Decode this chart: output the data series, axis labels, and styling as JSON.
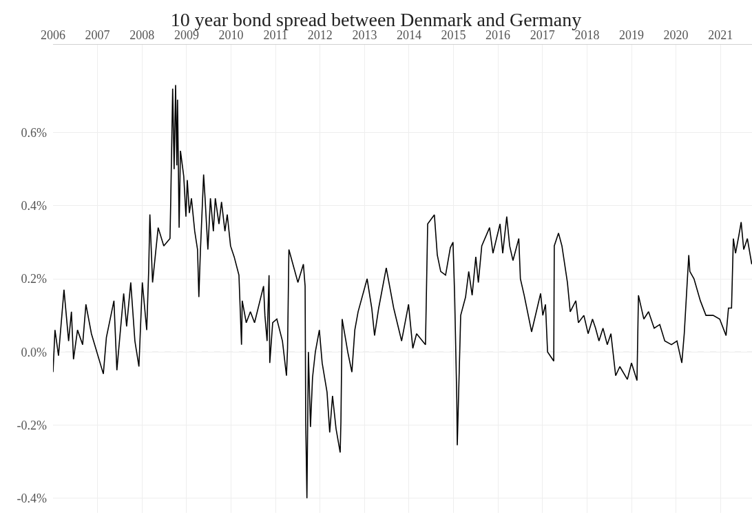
{
  "chart_data": {
    "type": "line",
    "title": "10 year bond spread between Denmark and Germany",
    "x": [
      "2006-01-01",
      "2006-01-17",
      "2006-02-15",
      "2006-04-01",
      "2006-05-09",
      "2006-06-01",
      "2006-06-18",
      "2006-07-21",
      "2006-09-01",
      "2006-09-28",
      "2006-11-12",
      "2007-02-18",
      "2007-03-15",
      "2007-05-16",
      "2007-06-09",
      "2007-08-04",
      "2007-08-28",
      "2007-10-01",
      "2007-11-04",
      "2007-12-07",
      "2008-01-04",
      "2008-02-09",
      "2008-02-25",
      "2008-03-06",
      "2008-03-28",
      "2008-05-13",
      "2008-06-28",
      "2008-08-18",
      "2008-08-24",
      "2008-09-09",
      "2008-09-21",
      "2008-10-03",
      "2008-10-13",
      "2008-10-19",
      "2008-11-01",
      "2008-11-12",
      "2008-12-09",
      "2008-12-27",
      "2009-01-07",
      "2009-01-24",
      "2009-02-10",
      "2009-03-09",
      "2009-04-01",
      "2009-04-12",
      "2009-04-24",
      "2009-05-21",
      "2009-06-02",
      "2009-06-25",
      "2009-07-16",
      "2009-08-09",
      "2009-08-25",
      "2009-09-24",
      "2009-10-15",
      "2009-11-12",
      "2009-12-01",
      "2009-12-28",
      "2010-01-27",
      "2010-03-07",
      "2010-03-28",
      "2010-04-03",
      "2010-05-06",
      "2010-06-09",
      "2010-07-13",
      "2010-09-25",
      "2010-10-06",
      "2010-10-24",
      "2010-11-09",
      "2010-11-15",
      "2010-12-09",
      "2011-01-12",
      "2011-02-27",
      "2011-04-01",
      "2011-04-10",
      "2011-04-21",
      "2011-06-01",
      "2011-07-04",
      "2011-08-18",
      "2011-09-01",
      "2011-09-06",
      "2011-09-16",
      "2011-09-28",
      "2011-10-15",
      "2011-11-01",
      "2011-11-24",
      "2011-12-27",
      "2012-01-19",
      "2012-02-28",
      "2012-03-21",
      "2012-04-13",
      "2012-05-12",
      "2012-06-15",
      "2012-06-21",
      "2012-07-01",
      "2012-08-01",
      "2012-08-16",
      "2012-09-19",
      "2012-10-13",
      "2012-11-09",
      "2013-01-22",
      "2013-03-01",
      "2013-03-24",
      "2013-04-27",
      "2013-06-28",
      "2013-08-28",
      "2013-11-01",
      "2013-12-28",
      "2014-02-01",
      "2014-03-04",
      "2014-05-16",
      "2014-06-03",
      "2014-07-28",
      "2014-08-21",
      "2014-09-18",
      "2014-10-28",
      "2014-12-06",
      "2014-12-28",
      "2015-01-10",
      "2015-01-28",
      "2015-02-01",
      "2015-03-01",
      "2015-04-10",
      "2015-05-06",
      "2015-06-03",
      "2015-07-03",
      "2015-07-24",
      "2015-08-21",
      "2015-10-24",
      "2015-11-21",
      "2016-01-18",
      "2016-02-09",
      "2016-03-13",
      "2016-04-06",
      "2016-05-03",
      "2016-06-20",
      "2016-07-03",
      "2016-08-03",
      "2016-10-03",
      "2016-12-16",
      "2017-01-03",
      "2017-01-25",
      "2017-02-11",
      "2017-04-03",
      "2017-04-07",
      "2017-05-12",
      "2017-06-09",
      "2017-07-24",
      "2017-08-16",
      "2017-10-01",
      "2017-10-22",
      "2017-12-06",
      "2018-01-10",
      "2018-02-15",
      "2018-03-12",
      "2018-04-09",
      "2018-05-12",
      "2018-06-16",
      "2018-07-16",
      "2018-08-24",
      "2018-09-27",
      "2018-11-28",
      "2019-01-01",
      "2019-02-15",
      "2019-02-27",
      "2019-04-12",
      "2019-05-21",
      "2019-07-06",
      "2019-08-21",
      "2019-10-01",
      "2019-11-25",
      "2020-01-09",
      "2020-02-18",
      "2020-03-09",
      "2020-04-15",
      "2020-04-24",
      "2020-05-28",
      "2020-07-19",
      "2020-09-03",
      "2020-11-01",
      "2020-12-25",
      "2021-02-15",
      "2021-03-07",
      "2021-04-01",
      "2021-04-16",
      "2021-05-04",
      "2021-06-01",
      "2021-06-19",
      "2021-07-10",
      "2021-08-09",
      "2021-09-14"
    ],
    "series": [
      {
        "color": "#000000",
        "values": [
          -0.055,
          0.06,
          -0.01,
          0.17,
          0.03,
          0.11,
          -0.02,
          0.06,
          0.02,
          0.13,
          0.05,
          -0.06,
          0.04,
          0.14,
          -0.05,
          0.16,
          0.07,
          0.19,
          0.03,
          -0.04,
          0.19,
          0.06,
          0.22,
          0.376,
          0.19,
          0.34,
          0.29,
          0.31,
          0.41,
          0.72,
          0.5,
          0.73,
          0.51,
          0.69,
          0.34,
          0.55,
          0.48,
          0.37,
          0.47,
          0.38,
          0.42,
          0.33,
          0.28,
          0.15,
          0.27,
          0.485,
          0.42,
          0.28,
          0.42,
          0.33,
          0.42,
          0.35,
          0.41,
          0.33,
          0.376,
          0.29,
          0.26,
          0.21,
          0.02,
          0.14,
          0.08,
          0.11,
          0.08,
          0.18,
          0.1,
          0.03,
          0.21,
          -0.03,
          0.08,
          0.09,
          0.03,
          -0.065,
          0.01,
          0.28,
          0.23,
          0.19,
          0.24,
          0.18,
          -0.19,
          -0.4,
          0.0,
          -0.205,
          -0.07,
          0.0,
          0.06,
          -0.03,
          -0.11,
          -0.22,
          -0.12,
          -0.21,
          -0.275,
          -0.19,
          0.09,
          0.03,
          0.0,
          -0.055,
          0.06,
          0.11,
          0.2,
          0.12,
          0.045,
          0.12,
          0.23,
          0.12,
          0.03,
          0.13,
          0.01,
          0.05,
          0.02,
          0.35,
          0.375,
          0.265,
          0.22,
          0.21,
          0.285,
          0.3,
          0.16,
          -0.13,
          -0.255,
          0.1,
          0.15,
          0.22,
          0.155,
          0.26,
          0.19,
          0.29,
          0.34,
          0.27,
          0.35,
          0.27,
          0.37,
          0.29,
          0.25,
          0.31,
          0.2,
          0.155,
          0.055,
          0.16,
          0.1,
          0.13,
          0.0,
          -0.025,
          0.29,
          0.325,
          0.29,
          0.19,
          0.11,
          0.14,
          0.08,
          0.1,
          0.05,
          0.09,
          0.065,
          0.03,
          0.065,
          0.02,
          0.05,
          -0.065,
          -0.04,
          -0.075,
          -0.03,
          -0.078,
          0.155,
          0.09,
          0.11,
          0.065,
          0.075,
          0.03,
          0.02,
          0.03,
          -0.03,
          0.05,
          0.265,
          0.22,
          0.2,
          0.14,
          0.1,
          0.1,
          0.09,
          0.045,
          0.12,
          0.12,
          0.31,
          0.27,
          0.32,
          0.355,
          0.28,
          0.31,
          0.24
        ]
      }
    ],
    "xlim": [
      "2006-01-01",
      "2021-09-16"
    ],
    "xticks": [
      "2006",
      "2007",
      "2008",
      "2009",
      "2010",
      "2011",
      "2012",
      "2013",
      "2014",
      "2015",
      "2016",
      "2017",
      "2018",
      "2019",
      "2020",
      "2021"
    ],
    "ylim": [
      -0.44,
      0.84
    ],
    "yticks": [
      {
        "value": -0.4,
        "label": "-0.4%"
      },
      {
        "value": -0.2,
        "label": "-0.2%"
      },
      {
        "value": 0.0,
        "label": "0.0%"
      },
      {
        "value": 0.2,
        "label": "0.2%"
      },
      {
        "value": 0.4,
        "label": "0.4%"
      },
      {
        "value": 0.6,
        "label": "0.6%"
      }
    ],
    "ref_lines": [
      {
        "axis": "y",
        "value": 0,
        "color": "#c8c8c8",
        "line_style": "dashed"
      }
    ],
    "grid": true,
    "marker": "none",
    "line_style": "solid"
  }
}
